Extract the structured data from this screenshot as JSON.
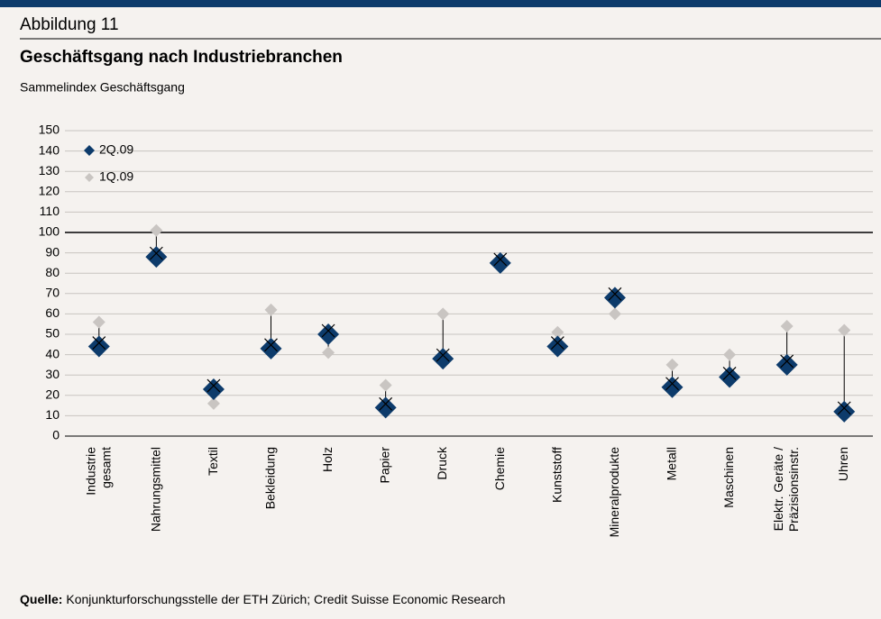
{
  "header": "Abbildung 11",
  "chart_data": {
    "type": "dotplot",
    "title": "Geschäftsgang nach Industriebranchen",
    "subtitle": "Sammelindex Geschäftsgang",
    "categories": [
      "Industrie\ngesamt",
      "Nahrungsmittel",
      "Textil",
      "Bekleidung",
      "Holz",
      "Papier",
      "Druck",
      "Chemie",
      "Kunststoff",
      "Mineralprodukte",
      "Metall",
      "Maschinen",
      "Elektr. Geräte /\nPräzisionsinstr.",
      "Uhren"
    ],
    "series": [
      {
        "name": "2Q.09",
        "color": "#0d3b6b",
        "values": [
          44,
          88,
          23,
          43,
          50,
          14,
          38,
          85,
          44,
          68,
          24,
          29,
          35,
          12
        ]
      },
      {
        "name": "1Q.09",
        "color": "#c9c5c2",
        "values": [
          56,
          101,
          16,
          62,
          41,
          25,
          60,
          87,
          51,
          60,
          35,
          40,
          54,
          52
        ]
      }
    ],
    "ylim": [
      0,
      150
    ],
    "yticks": [
      0,
      10,
      20,
      30,
      40,
      50,
      60,
      70,
      80,
      90,
      100,
      110,
      120,
      130,
      140,
      150
    ],
    "reference_line": 100,
    "grid": true,
    "legend": "top-left"
  },
  "source_label": "Quelle:",
  "source": "Konjunkturforschungsstelle der ETH Zürich; Credit Suisse Economic Research"
}
